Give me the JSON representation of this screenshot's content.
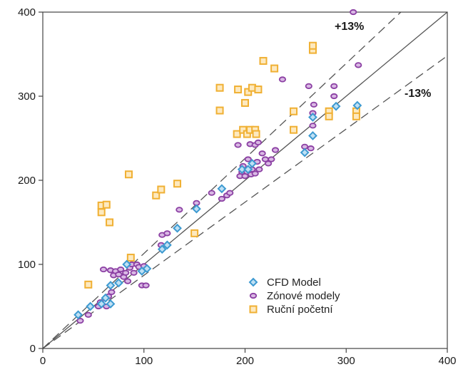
{
  "chart_data": {
    "type": "scatter",
    "title": "",
    "xlabel": "",
    "ylabel": "",
    "xlim": [
      0,
      400
    ],
    "ylim": [
      0,
      400
    ],
    "xticks": [
      0,
      100,
      200,
      300,
      400
    ],
    "yticks": [
      0,
      100,
      200,
      300,
      400
    ],
    "x_tick_labels": [
      "0",
      "100",
      "200",
      "300",
      "400"
    ],
    "y_tick_labels": [
      "0",
      "100",
      "200",
      "300",
      "400"
    ],
    "grid": false,
    "reference_lines": [
      {
        "label": "+13%",
        "slope": 1.13
      },
      {
        "label": "",
        "slope": 1.0
      },
      {
        "label": "-13%",
        "slope": 0.87
      }
    ],
    "legend_position": "bottom-right",
    "colors": {
      "cfd": "#3d9ad1",
      "zonove": "#8b3fa3",
      "rucni": "#f0b033",
      "ref_line": "#555555"
    },
    "series": [
      {
        "name": "CFD Model",
        "marker": "diamond",
        "points": [
          [
            35,
            40
          ],
          [
            47,
            50
          ],
          [
            58,
            53
          ],
          [
            62,
            60
          ],
          [
            67,
            53
          ],
          [
            67,
            75
          ],
          [
            75,
            78
          ],
          [
            83,
            100
          ],
          [
            98,
            92
          ],
          [
            103,
            95
          ],
          [
            118,
            118
          ],
          [
            123,
            123
          ],
          [
            133,
            143
          ],
          [
            152,
            166
          ],
          [
            177,
            190
          ],
          [
            197,
            213
          ],
          [
            203,
            213
          ],
          [
            207,
            220
          ],
          [
            259,
            233
          ],
          [
            267,
            253
          ],
          [
            267,
            275
          ],
          [
            290,
            288
          ],
          [
            311,
            289
          ]
        ]
      },
      {
        "name": "Zónové modely",
        "marker": "circle",
        "points": [
          [
            37,
            33
          ],
          [
            45,
            40
          ],
          [
            55,
            50
          ],
          [
            57,
            55
          ],
          [
            60,
            94
          ],
          [
            63,
            50
          ],
          [
            65,
            62
          ],
          [
            67,
            93
          ],
          [
            68,
            67
          ],
          [
            70,
            87
          ],
          [
            72,
            92
          ],
          [
            75,
            88
          ],
          [
            77,
            94
          ],
          [
            80,
            85
          ],
          [
            82,
            90
          ],
          [
            84,
            80
          ],
          [
            86,
            96
          ],
          [
            88,
            100
          ],
          [
            90,
            90
          ],
          [
            93,
            100
          ],
          [
            95,
            97
          ],
          [
            98,
            75
          ],
          [
            100,
            98
          ],
          [
            102,
            75
          ],
          [
            117,
            123
          ],
          [
            118,
            135
          ],
          [
            123,
            137
          ],
          [
            135,
            165
          ],
          [
            152,
            173
          ],
          [
            167,
            185
          ],
          [
            177,
            178
          ],
          [
            182,
            182
          ],
          [
            185,
            185
          ],
          [
            193,
            242
          ],
          [
            195,
            205
          ],
          [
            197,
            210
          ],
          [
            198,
            217
          ],
          [
            200,
            205
          ],
          [
            202,
            210
          ],
          [
            203,
            225
          ],
          [
            205,
            243
          ],
          [
            206,
            207
          ],
          [
            207,
            213
          ],
          [
            210,
            208
          ],
          [
            210,
            242
          ],
          [
            212,
            222
          ],
          [
            213,
            245
          ],
          [
            214,
            213
          ],
          [
            217,
            232
          ],
          [
            220,
            225
          ],
          [
            223,
            220
          ],
          [
            226,
            225
          ],
          [
            230,
            236
          ],
          [
            237,
            320
          ],
          [
            259,
            240
          ],
          [
            263,
            312
          ],
          [
            265,
            238
          ],
          [
            267,
            265
          ],
          [
            267,
            280
          ],
          [
            268,
            290
          ],
          [
            288,
            300
          ],
          [
            288,
            312
          ],
          [
            307,
            400
          ],
          [
            312,
            337
          ]
        ]
      },
      {
        "name": "Ruční početní",
        "marker": "square",
        "points": [
          [
            45,
            76
          ],
          [
            58,
            170
          ],
          [
            58,
            162
          ],
          [
            63,
            171
          ],
          [
            66,
            150
          ],
          [
            85,
            207
          ],
          [
            87,
            108
          ],
          [
            112,
            182
          ],
          [
            117,
            189
          ],
          [
            133,
            196
          ],
          [
            150,
            137
          ],
          [
            175,
            310
          ],
          [
            175,
            283
          ],
          [
            192,
            255
          ],
          [
            193,
            308
          ],
          [
            198,
            260
          ],
          [
            200,
            292
          ],
          [
            202,
            255
          ],
          [
            203,
            305
          ],
          [
            205,
            260
          ],
          [
            207,
            310
          ],
          [
            210,
            260
          ],
          [
            211,
            255
          ],
          [
            213,
            308
          ],
          [
            218,
            342
          ],
          [
            229,
            333
          ],
          [
            248,
            282
          ],
          [
            248,
            260
          ],
          [
            267,
            355
          ],
          [
            267,
            360
          ],
          [
            283,
            282
          ],
          [
            283,
            276
          ],
          [
            310,
            282
          ],
          [
            310,
            276
          ]
        ]
      }
    ]
  }
}
